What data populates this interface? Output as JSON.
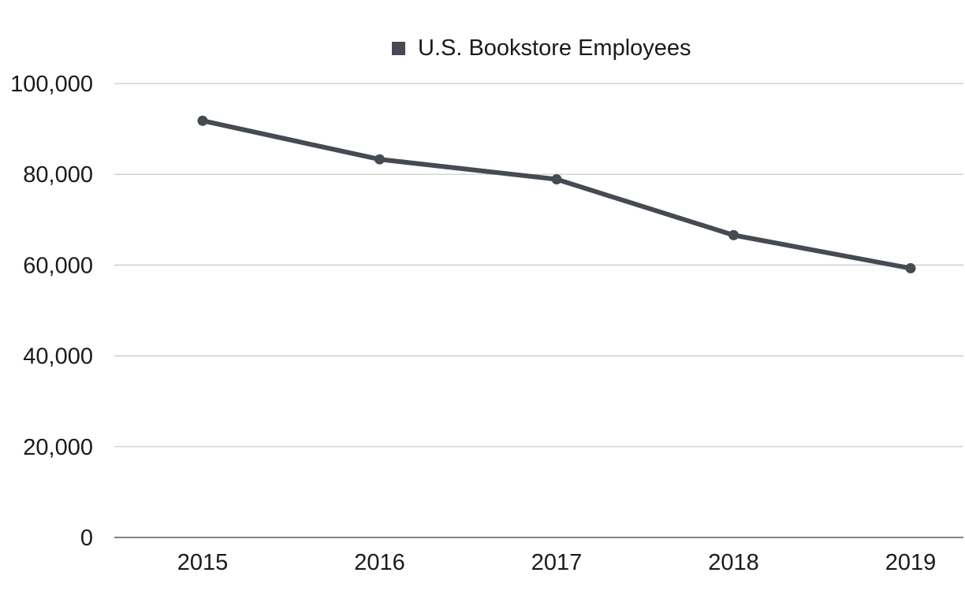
{
  "chart_data": {
    "type": "line",
    "title": "",
    "xlabel": "",
    "ylabel": "",
    "categories": [
      "2015",
      "2016",
      "2017",
      "2018",
      "2019"
    ],
    "series": [
      {
        "name": "U.S. Bookstore Employees",
        "values": [
          91800,
          83300,
          78900,
          66600,
          59300
        ]
      }
    ],
    "ylim": [
      0,
      100000
    ],
    "yticks": [
      0,
      20000,
      40000,
      60000,
      80000,
      100000
    ],
    "ytick_labels": [
      "0",
      "20,000",
      "40,000",
      "60,000",
      "80,000",
      "100,000"
    ],
    "grid": true,
    "legend_position": "top-center",
    "colors": {
      "series": "#464a52",
      "grid": "#c6c6c6",
      "axis": "#5a5a5a",
      "text": "#1a1a1a"
    }
  }
}
